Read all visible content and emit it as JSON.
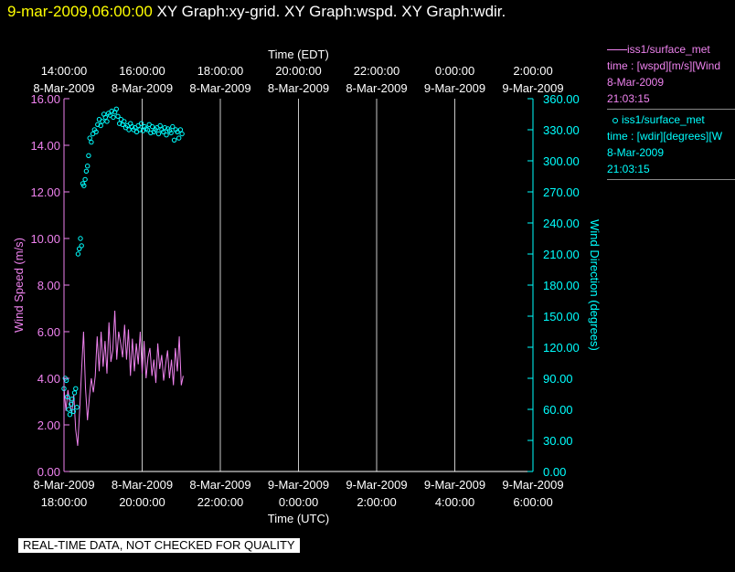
{
  "header": {
    "date": "9-mar-2009,06:00:00",
    "graphs": "XY Graph:xy-grid.  XY Graph:wspd.  XY Graph:wdir."
  },
  "legend": {
    "wspd": {
      "name": "iss1/surface_met",
      "desc": "time : [wspd][m/s][Wind",
      "date": "8-Mar-2009",
      "time": "21:03:15"
    },
    "wdir": {
      "name": "iss1/surface_met",
      "desc": "time : [wdir][degrees][W",
      "date": "8-Mar-2009",
      "time": "21:03:15"
    }
  },
  "quality_note": "REAL-TIME DATA, NOT CHECKED FOR QUALITY",
  "colors": {
    "wspd": "#ee82ee",
    "wdir": "#00ffff",
    "grid": "#c8c8c8",
    "title_date": "#ffff00"
  },
  "chart_data": {
    "type": "line",
    "xlabel_bottom": "Time (UTC)",
    "xlabel_top": "Time (EDT)",
    "ylabel_left": "Wind Speed (m/s)",
    "ylabel_right": "Wind Direction (degrees)",
    "x_range_hours_utc": [
      18,
      30
    ],
    "ylim_left": [
      0,
      16
    ],
    "ylim_right": [
      0,
      360
    ],
    "bottom_ticks": [
      {
        "date": "8-Mar-2009",
        "time": "18:00:00"
      },
      {
        "date": "8-Mar-2009",
        "time": "20:00:00"
      },
      {
        "date": "8-Mar-2009",
        "time": "22:00:00"
      },
      {
        "date": "9-Mar-2009",
        "time": "0:00:00"
      },
      {
        "date": "9-Mar-2009",
        "time": "2:00:00"
      },
      {
        "date": "9-Mar-2009",
        "time": "4:00:00"
      },
      {
        "date": "9-Mar-2009",
        "time": "6:00:00"
      }
    ],
    "top_ticks": [
      {
        "time": "14:00:00",
        "date": "8-Mar-2009"
      },
      {
        "time": "16:00:00",
        "date": "8-Mar-2009"
      },
      {
        "time": "18:00:00",
        "date": "8-Mar-2009"
      },
      {
        "time": "20:00:00",
        "date": "8-Mar-2009"
      },
      {
        "time": "22:00:00",
        "date": "8-Mar-2009"
      },
      {
        "time": "0:00:00",
        "date": "9-Mar-2009"
      },
      {
        "time": "2:00:00",
        "date": "9-Mar-2009"
      }
    ],
    "left_ticks": [
      "0.00",
      "2.00",
      "4.00",
      "6.00",
      "8.00",
      "10.00",
      "12.00",
      "14.00",
      "16.00"
    ],
    "right_ticks": [
      "0.00",
      "30.00",
      "60.00",
      "90.00",
      "120.00",
      "150.00",
      "180.00",
      "210.00",
      "240.00",
      "270.00",
      "300.00",
      "330.00",
      "360.00"
    ],
    "series": [
      {
        "name": "wspd",
        "style": "line",
        "axis": "left",
        "x": [
          18.0,
          18.05,
          18.1,
          18.15,
          18.2,
          18.25,
          18.3,
          18.35,
          18.4,
          18.45,
          18.5,
          18.55,
          18.6,
          18.65,
          18.7,
          18.75,
          18.8,
          18.85,
          18.9,
          18.95,
          19.0,
          19.05,
          19.1,
          19.15,
          19.2,
          19.25,
          19.3,
          19.35,
          19.4,
          19.45,
          19.5,
          19.55,
          19.6,
          19.65,
          19.7,
          19.75,
          19.8,
          19.85,
          19.9,
          19.95,
          20.0,
          20.05,
          20.1,
          20.15,
          20.2,
          20.25,
          20.3,
          20.35,
          20.4,
          20.45,
          20.5,
          20.55,
          20.6,
          20.65,
          20.7,
          20.75,
          20.8,
          20.85,
          20.9,
          20.95,
          21.0,
          21.05
        ],
        "values": [
          3.6,
          2.6,
          3.5,
          2.9,
          2.5,
          3.3,
          1.8,
          1.1,
          2.6,
          4.3,
          6.0,
          3.6,
          2.2,
          3.2,
          4.0,
          3.4,
          4.1,
          5.8,
          4.3,
          6.0,
          4.5,
          5.6,
          4.2,
          6.4,
          4.7,
          5.2,
          6.9,
          4.8,
          6.0,
          5.5,
          4.9,
          6.3,
          4.8,
          6.1,
          4.1,
          5.7,
          4.3,
          5.5,
          4.6,
          6.0,
          4.2,
          5.6,
          4.0,
          4.9,
          5.3,
          4.1,
          4.8,
          3.8,
          5.5,
          4.4,
          5.0,
          3.9,
          4.6,
          5.2,
          4.0,
          4.8,
          3.7,
          5.3,
          4.3,
          5.8,
          3.7,
          4.1
        ]
      },
      {
        "name": "wdir",
        "style": "points",
        "axis": "right",
        "x": [
          18.0,
          18.03,
          18.06,
          18.09,
          18.12,
          18.15,
          18.18,
          18.21,
          18.24,
          18.27,
          18.3,
          18.33,
          18.36,
          18.39,
          18.42,
          18.45,
          18.48,
          18.51,
          18.54,
          18.57,
          18.6,
          18.63,
          18.66,
          18.7,
          18.74,
          18.78,
          18.82,
          18.86,
          18.9,
          18.94,
          18.98,
          19.02,
          19.06,
          19.1,
          19.14,
          19.18,
          19.22,
          19.26,
          19.3,
          19.34,
          19.38,
          19.42,
          19.46,
          19.5,
          19.54,
          19.58,
          19.62,
          19.66,
          19.7,
          19.74,
          19.78,
          19.82,
          19.86,
          19.9,
          19.94,
          19.98,
          20.02,
          20.06,
          20.1,
          20.14,
          20.18,
          20.22,
          20.26,
          20.3,
          20.34,
          20.38,
          20.42,
          20.46,
          20.5,
          20.54,
          20.58,
          20.62,
          20.66,
          20.7,
          20.74,
          20.78,
          20.82,
          20.86,
          20.9,
          20.94,
          20.98,
          21.02
        ],
        "values": [
          80,
          90,
          88,
          72,
          60,
          55,
          65,
          70,
          58,
          76,
          80,
          62,
          210,
          215,
          225,
          218,
          278,
          276,
          282,
          290,
          295,
          305,
          322,
          318,
          326,
          330,
          328,
          335,
          340,
          334,
          338,
          345,
          342,
          338,
          346,
          344,
          348,
          342,
          347,
          350,
          343,
          336,
          340,
          335,
          338,
          332,
          334,
          330,
          336,
          333,
          330,
          332,
          328,
          334,
          330,
          336,
          329,
          333,
          331,
          330,
          335,
          327,
          333,
          328,
          330,
          332,
          326,
          334,
          330,
          328,
          332,
          325,
          331,
          329,
          327,
          333,
          320,
          330,
          328,
          322,
          330,
          326
        ]
      }
    ]
  }
}
